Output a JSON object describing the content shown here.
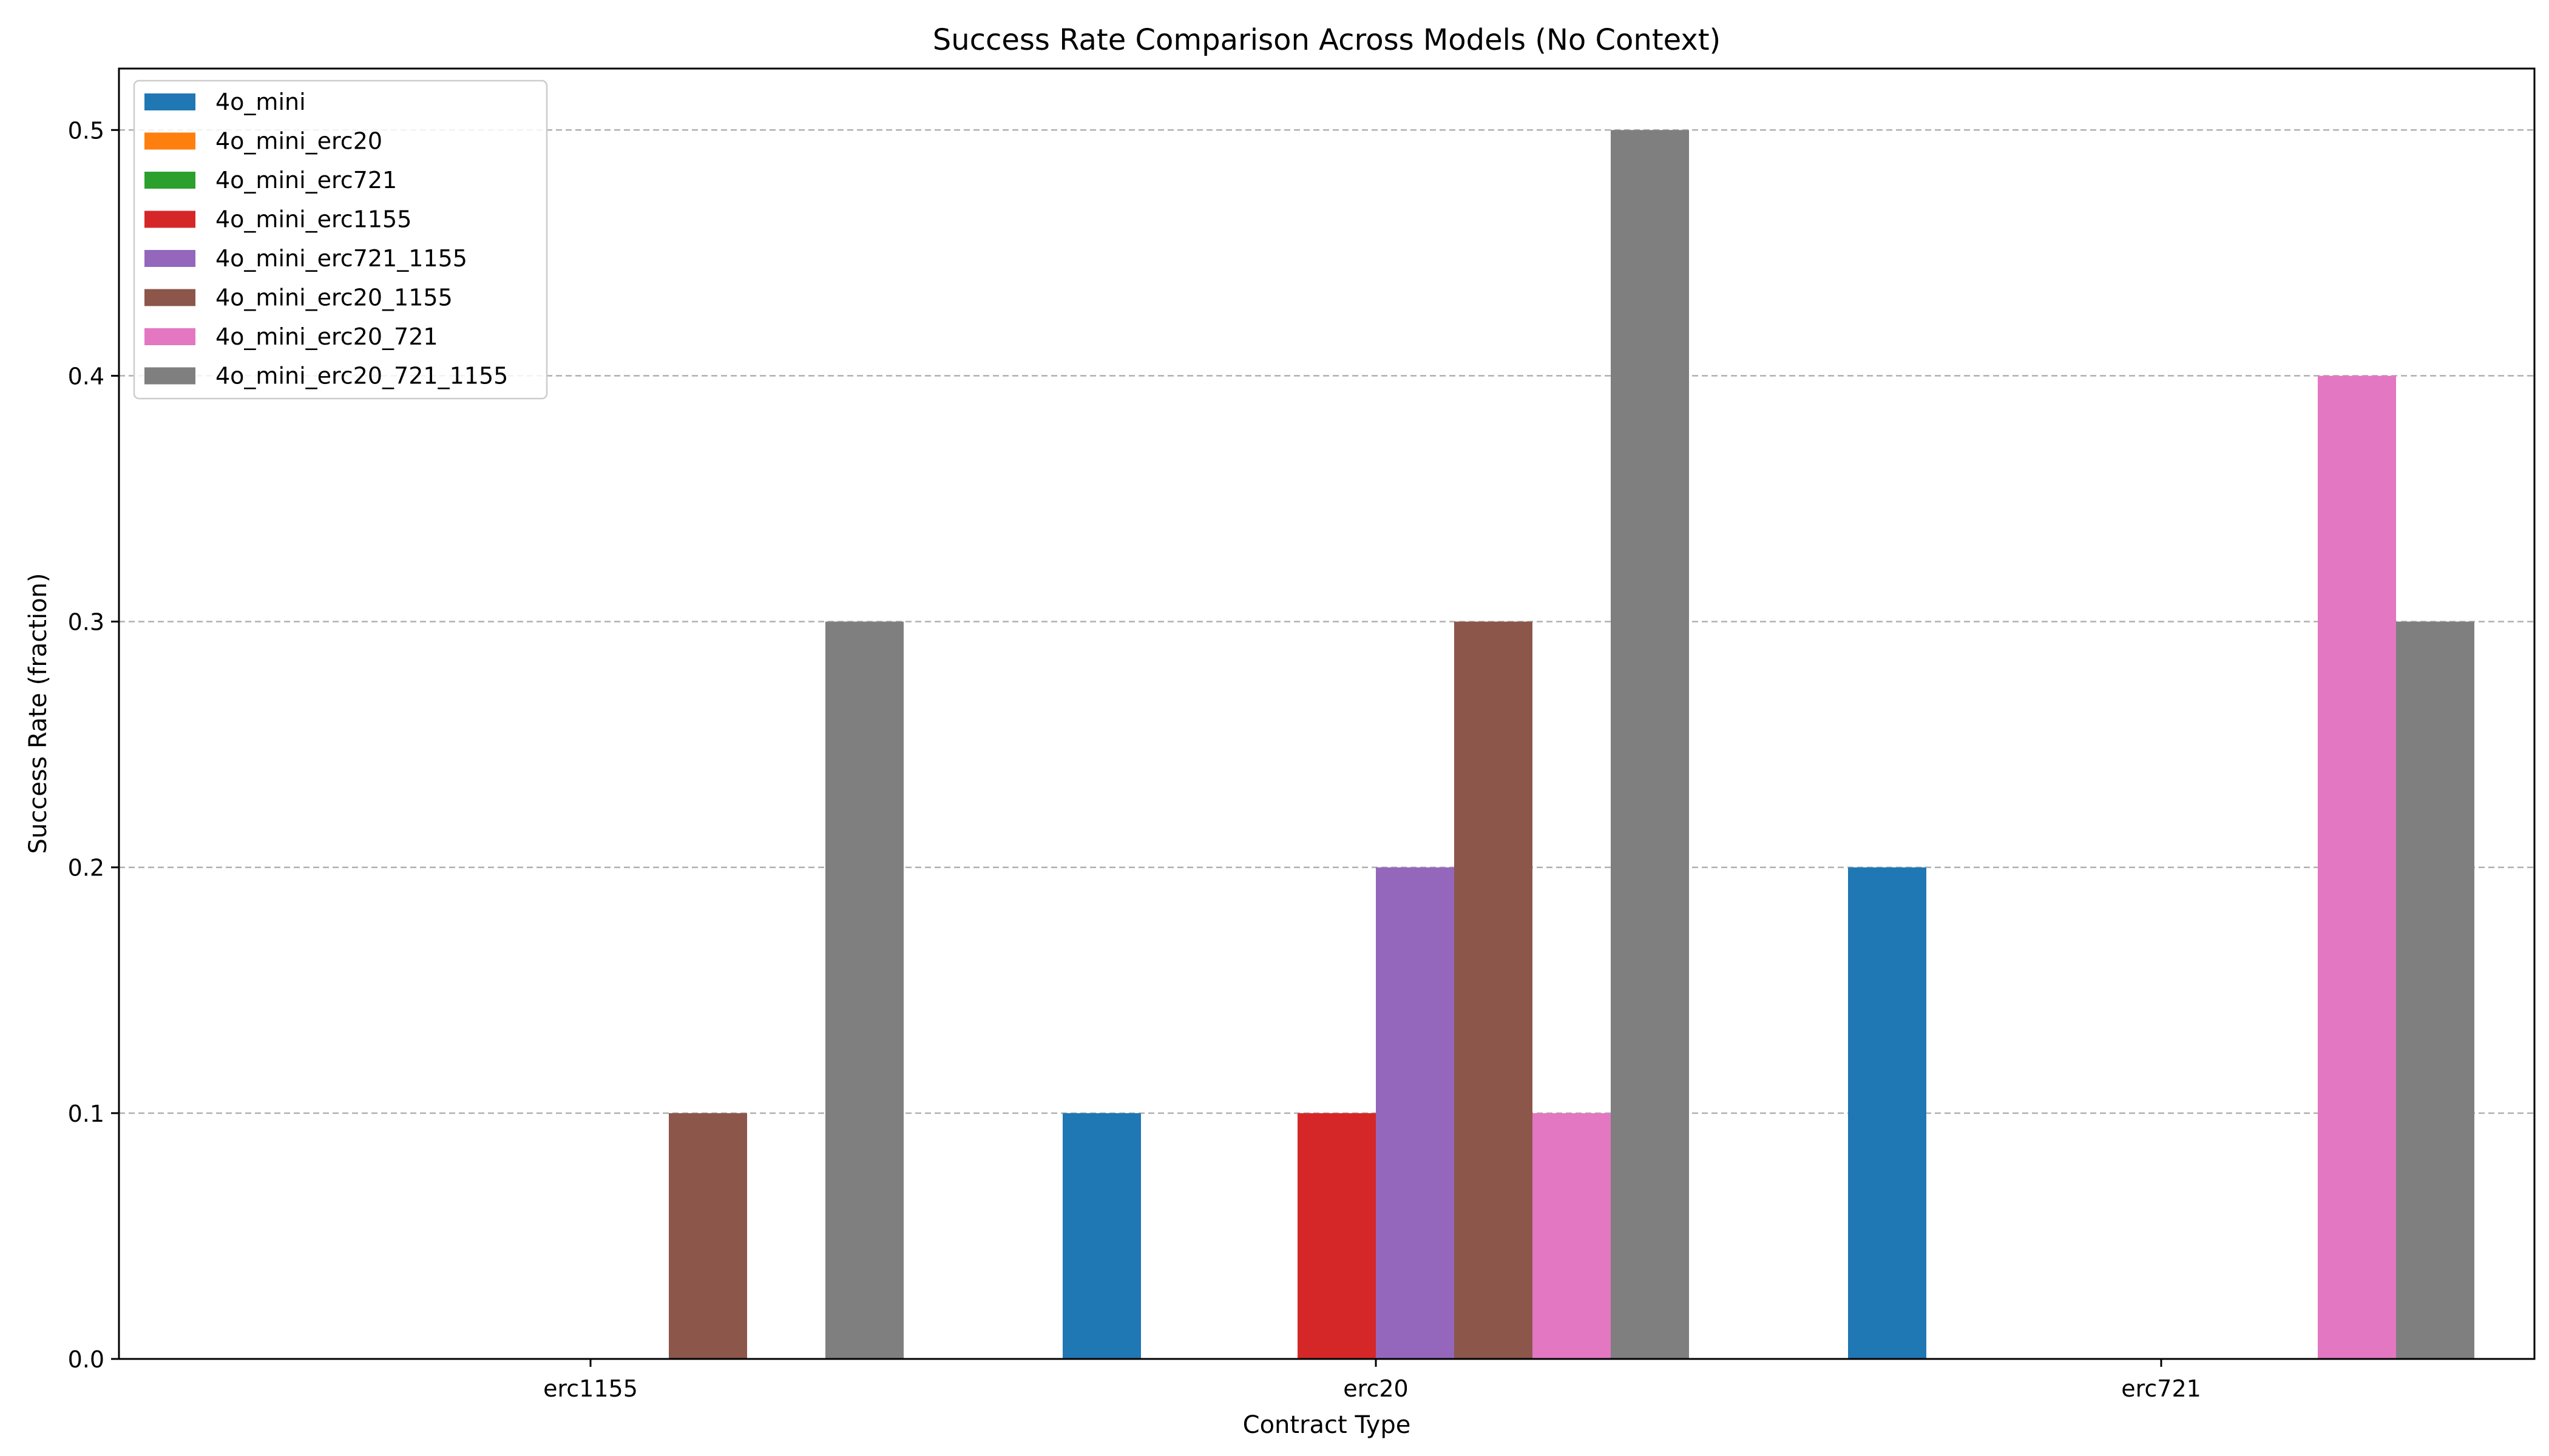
{
  "chart_data": {
    "type": "bar",
    "title": "Success Rate Comparison Across Models (No Context)",
    "xlabel": "Contract Type",
    "ylabel": "Success Rate (fraction)",
    "categories": [
      "erc1155",
      "erc20",
      "erc721"
    ],
    "ylim": [
      0,
      0.525
    ],
    "yticks": [
      "0.0",
      "0.1",
      "0.2",
      "0.3",
      "0.4",
      "0.5"
    ],
    "grid": "y-dashed",
    "legend_position": "top-left",
    "series": [
      {
        "name": "4o_mini",
        "color": "#1f77b4",
        "values": [
          0.0,
          0.1,
          0.2
        ]
      },
      {
        "name": "4o_mini_erc20",
        "color": "#ff7f0e",
        "values": [
          0.0,
          0.0,
          0.0
        ]
      },
      {
        "name": "4o_mini_erc721",
        "color": "#2ca02c",
        "values": [
          0.0,
          0.0,
          0.0
        ]
      },
      {
        "name": "4o_mini_erc1155",
        "color": "#d62728",
        "values": [
          0.0,
          0.1,
          0.0
        ]
      },
      {
        "name": "4o_mini_erc721_1155",
        "color": "#9467bd",
        "values": [
          0.0,
          0.2,
          0.0
        ]
      },
      {
        "name": "4o_mini_erc20_1155",
        "color": "#8c564b",
        "values": [
          0.1,
          0.3,
          0.0
        ]
      },
      {
        "name": "4o_mini_erc20_721",
        "color": "#e377c2",
        "values": [
          0.0,
          0.1,
          0.4
        ]
      },
      {
        "name": "4o_mini_erc20_721_1155",
        "color": "#7f7f7f",
        "values": [
          0.3,
          0.5,
          0.3
        ]
      }
    ]
  }
}
